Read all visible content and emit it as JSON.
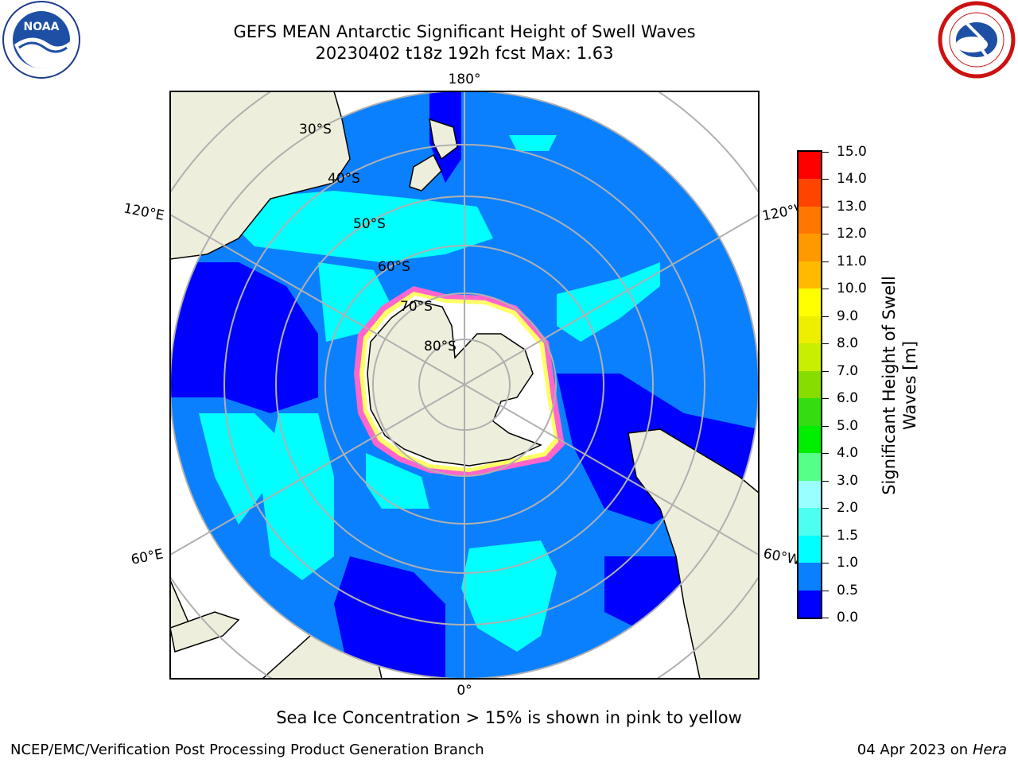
{
  "title_line1": "GEFS MEAN Antarctic Significant Height of Swell Waves",
  "title_line2": "20230402 t18z 192h fcst   Max: 1.63",
  "logos": {
    "left": "noaa-logo",
    "left_text": "NOAA",
    "right": "nws-logo"
  },
  "map": {
    "projection": "south-polar-stereographic",
    "lon_labels": {
      "top": "180°",
      "bottom": "0°",
      "upper_left": "120°E",
      "upper_right": "120°W",
      "lower_left": "60°E",
      "lower_right": "60°W"
    },
    "lat_labels": {
      "l30": "30°S",
      "l40": "40°S",
      "l50": "50°S",
      "l60": "60°S",
      "l70": "70°S",
      "l80": "80°S"
    },
    "colors": {
      "ocean_deep": "#0000ff",
      "ocean_mid": "#0a80ff",
      "ocean_cyan": "#00ffff",
      "land": "#eeeedc",
      "ice": "#ffffff",
      "grid": "#b0b0b0"
    }
  },
  "colorbar": {
    "label": "Significant Height of Swell Waves [m]",
    "label_line1": "Significant Height of Swell",
    "label_line2": "Waves [m]",
    "ticks": [
      "15.0",
      "14.0",
      "13.0",
      "12.0",
      "11.0",
      "10.0",
      "9.0",
      "8.0",
      "7.0",
      "6.0",
      "5.0",
      "4.0",
      "3.0",
      "2.0",
      "1.5",
      "1.0",
      "0.5",
      "0.0"
    ],
    "colors": [
      "#0000ff",
      "#0a80ff",
      "#00ffff",
      "#4dfff0",
      "#99ffff",
      "#55ff88",
      "#00ee00",
      "#33dd11",
      "#88dd00",
      "#c8ee00",
      "#eeee00",
      "#ffff00",
      "#ffbb00",
      "#ff9900",
      "#ff7700",
      "#ff4400",
      "#ff0000"
    ]
  },
  "footnote": "Sea Ice Concentration > 15% is shown in pink to yellow",
  "credit": "NCEP/EMC/Verification Post Processing Product Generation Branch",
  "date_text": "04 Apr 2023 on",
  "date_machine": "Hera"
}
